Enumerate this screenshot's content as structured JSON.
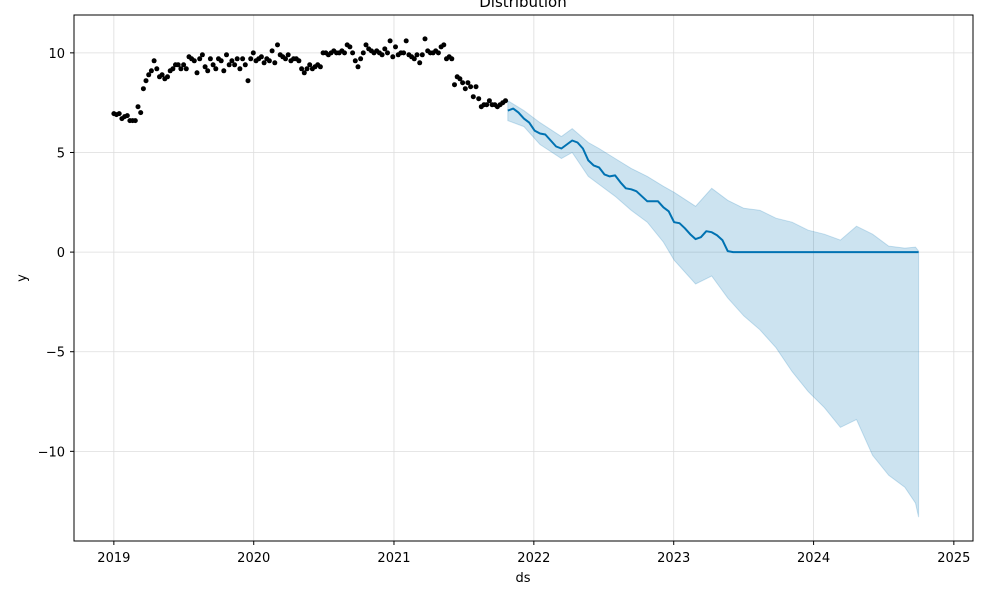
{
  "chart_data": {
    "type": "line",
    "title": "Distribution",
    "xlabel": "ds",
    "ylabel": "y",
    "xlim": [
      "2018-09-19",
      "2025-02-20"
    ],
    "ylim": [
      -14.5,
      11.9
    ],
    "xticks": [
      {
        "date": "2019-01-01",
        "label": "2019"
      },
      {
        "date": "2020-01-01",
        "label": "2020"
      },
      {
        "date": "2021-01-01",
        "label": "2021"
      },
      {
        "date": "2022-01-01",
        "label": "2022"
      },
      {
        "date": "2023-01-01",
        "label": "2023"
      },
      {
        "date": "2024-01-01",
        "label": "2024"
      },
      {
        "date": "2025-01-01",
        "label": "2025"
      }
    ],
    "yticks": [
      {
        "value": 10,
        "label": "10"
      },
      {
        "value": 5,
        "label": "5"
      },
      {
        "value": 0,
        "label": "0"
      },
      {
        "value": -5,
        "label": "−5"
      },
      {
        "value": -10,
        "label": "−10"
      }
    ],
    "grid": true,
    "colors": {
      "observed": "#000000",
      "forecast": "#0072B2",
      "interval": "#0072B2",
      "grid": "#dddddd"
    },
    "series": [
      {
        "kind": "scatter",
        "points": [
          [
            "2019-01-01",
            6.95
          ],
          [
            "2019-01-08",
            6.9
          ],
          [
            "2019-01-15",
            6.95
          ],
          [
            "2019-01-22",
            6.7
          ],
          [
            "2019-01-29",
            6.8
          ],
          [
            "2019-02-05",
            6.85
          ],
          [
            "2019-02-12",
            6.6
          ],
          [
            "2019-02-19",
            6.6
          ],
          [
            "2019-02-26",
            6.6
          ],
          [
            "2019-03-05",
            7.3
          ],
          [
            "2019-03-12",
            7.0
          ],
          [
            "2019-03-19",
            8.2
          ],
          [
            "2019-03-26",
            8.6
          ],
          [
            "2019-04-02",
            8.9
          ],
          [
            "2019-04-09",
            9.1
          ],
          [
            "2019-04-16",
            9.6
          ],
          [
            "2019-04-23",
            9.2
          ],
          [
            "2019-04-30",
            8.8
          ],
          [
            "2019-05-07",
            8.9
          ],
          [
            "2019-05-14",
            8.7
          ],
          [
            "2019-05-21",
            8.8
          ],
          [
            "2019-05-28",
            9.1
          ],
          [
            "2019-06-04",
            9.2
          ],
          [
            "2019-06-11",
            9.4
          ],
          [
            "2019-06-18",
            9.4
          ],
          [
            "2019-06-25",
            9.2
          ],
          [
            "2019-07-02",
            9.4
          ],
          [
            "2019-07-09",
            9.2
          ],
          [
            "2019-07-16",
            9.8
          ],
          [
            "2019-07-23",
            9.7
          ],
          [
            "2019-07-30",
            9.6
          ],
          [
            "2019-08-06",
            9.0
          ],
          [
            "2019-08-13",
            9.7
          ],
          [
            "2019-08-20",
            9.9
          ],
          [
            "2019-08-27",
            9.3
          ],
          [
            "2019-09-03",
            9.1
          ],
          [
            "2019-09-10",
            9.7
          ],
          [
            "2019-09-17",
            9.4
          ],
          [
            "2019-09-24",
            9.2
          ],
          [
            "2019-10-01",
            9.7
          ],
          [
            "2019-10-08",
            9.6
          ],
          [
            "2019-10-15",
            9.1
          ],
          [
            "2019-10-22",
            9.9
          ],
          [
            "2019-10-29",
            9.4
          ],
          [
            "2019-11-05",
            9.6
          ],
          [
            "2019-11-12",
            9.4
          ],
          [
            "2019-11-19",
            9.7
          ],
          [
            "2019-11-26",
            9.2
          ],
          [
            "2019-12-03",
            9.7
          ],
          [
            "2019-12-10",
            9.4
          ],
          [
            "2019-12-17",
            8.6
          ],
          [
            "2019-12-24",
            9.7
          ],
          [
            "2019-12-31",
            10.0
          ],
          [
            "2020-01-07",
            9.6
          ],
          [
            "2020-01-14",
            9.7
          ],
          [
            "2020-01-21",
            9.8
          ],
          [
            "2020-01-28",
            9.5
          ],
          [
            "2020-02-04",
            9.7
          ],
          [
            "2020-02-11",
            9.6
          ],
          [
            "2020-02-18",
            10.1
          ],
          [
            "2020-02-25",
            9.5
          ],
          [
            "2020-03-03",
            10.4
          ],
          [
            "2020-03-10",
            9.9
          ],
          [
            "2020-03-17",
            9.8
          ],
          [
            "2020-03-24",
            9.7
          ],
          [
            "2020-03-31",
            9.9
          ],
          [
            "2020-04-07",
            9.6
          ],
          [
            "2020-04-14",
            9.7
          ],
          [
            "2020-04-21",
            9.7
          ],
          [
            "2020-04-28",
            9.6
          ],
          [
            "2020-05-05",
            9.2
          ],
          [
            "2020-05-12",
            9.0
          ],
          [
            "2020-05-19",
            9.2
          ],
          [
            "2020-05-26",
            9.4
          ],
          [
            "2020-06-02",
            9.2
          ],
          [
            "2020-06-09",
            9.3
          ],
          [
            "2020-06-16",
            9.4
          ],
          [
            "2020-06-23",
            9.3
          ],
          [
            "2020-06-30",
            10.0
          ],
          [
            "2020-07-07",
            10.0
          ],
          [
            "2020-07-14",
            9.9
          ],
          [
            "2020-07-21",
            10.0
          ],
          [
            "2020-07-28",
            10.1
          ],
          [
            "2020-08-04",
            10.0
          ],
          [
            "2020-08-11",
            10.0
          ],
          [
            "2020-08-18",
            10.1
          ],
          [
            "2020-08-25",
            10.0
          ],
          [
            "2020-09-01",
            10.4
          ],
          [
            "2020-09-08",
            10.3
          ],
          [
            "2020-09-15",
            10.0
          ],
          [
            "2020-09-22",
            9.6
          ],
          [
            "2020-09-29",
            9.3
          ],
          [
            "2020-10-06",
            9.7
          ],
          [
            "2020-10-13",
            10.0
          ],
          [
            "2020-10-20",
            10.4
          ],
          [
            "2020-10-27",
            10.2
          ],
          [
            "2020-11-03",
            10.1
          ],
          [
            "2020-11-10",
            10.0
          ],
          [
            "2020-11-17",
            10.1
          ],
          [
            "2020-11-24",
            10.0
          ],
          [
            "2020-12-01",
            9.9
          ],
          [
            "2020-12-08",
            10.2
          ],
          [
            "2020-12-15",
            10.0
          ],
          [
            "2020-12-22",
            10.6
          ],
          [
            "2020-12-29",
            9.8
          ],
          [
            "2021-01-05",
            10.3
          ],
          [
            "2021-01-12",
            9.9
          ],
          [
            "2021-01-19",
            10.0
          ],
          [
            "2021-01-26",
            10.0
          ],
          [
            "2021-02-02",
            10.6
          ],
          [
            "2021-02-09",
            9.9
          ],
          [
            "2021-02-16",
            9.8
          ],
          [
            "2021-02-23",
            9.7
          ],
          [
            "2021-03-02",
            9.9
          ],
          [
            "2021-03-09",
            9.5
          ],
          [
            "2021-03-16",
            9.9
          ],
          [
            "2021-03-23",
            10.7
          ],
          [
            "2021-03-30",
            10.1
          ],
          [
            "2021-04-06",
            10.0
          ],
          [
            "2021-04-13",
            10.0
          ],
          [
            "2021-04-20",
            10.1
          ],
          [
            "2021-04-27",
            10.0
          ],
          [
            "2021-05-04",
            10.3
          ],
          [
            "2021-05-11",
            10.4
          ],
          [
            "2021-05-18",
            9.7
          ],
          [
            "2021-05-25",
            9.8
          ],
          [
            "2021-06-01",
            9.7
          ],
          [
            "2021-06-08",
            8.4
          ],
          [
            "2021-06-15",
            8.8
          ],
          [
            "2021-06-22",
            8.7
          ],
          [
            "2021-06-29",
            8.5
          ],
          [
            "2021-07-06",
            8.2
          ],
          [
            "2021-07-13",
            8.5
          ],
          [
            "2021-07-20",
            8.3
          ],
          [
            "2021-07-27",
            7.8
          ],
          [
            "2021-08-03",
            8.3
          ],
          [
            "2021-08-10",
            7.7
          ],
          [
            "2021-08-17",
            7.3
          ],
          [
            "2021-08-24",
            7.4
          ],
          [
            "2021-08-31",
            7.4
          ],
          [
            "2021-09-07",
            7.6
          ],
          [
            "2021-09-14",
            7.4
          ],
          [
            "2021-09-21",
            7.4
          ],
          [
            "2021-09-28",
            7.3
          ],
          [
            "2021-10-05",
            7.4
          ],
          [
            "2021-10-12",
            7.5
          ],
          [
            "2021-10-19",
            7.6
          ]
        ]
      },
      {
        "kind": "line",
        "points": [
          [
            "2021-10-25",
            7.1
          ],
          [
            "2021-11-08",
            7.2
          ],
          [
            "2021-11-22",
            7.0
          ],
          [
            "2021-12-06",
            6.7
          ],
          [
            "2021-12-20",
            6.5
          ],
          [
            "2022-01-03",
            6.1
          ],
          [
            "2022-01-17",
            5.95
          ],
          [
            "2022-01-31",
            5.9
          ],
          [
            "2022-02-14",
            5.6
          ],
          [
            "2022-02-28",
            5.3
          ],
          [
            "2022-03-14",
            5.2
          ],
          [
            "2022-03-28",
            5.4
          ],
          [
            "2022-04-11",
            5.6
          ],
          [
            "2022-04-25",
            5.5
          ],
          [
            "2022-05-09",
            5.2
          ],
          [
            "2022-05-23",
            4.6
          ],
          [
            "2022-06-06",
            4.35
          ],
          [
            "2022-06-20",
            4.25
          ],
          [
            "2022-07-04",
            3.9
          ],
          [
            "2022-07-18",
            3.8
          ],
          [
            "2022-08-01",
            3.85
          ],
          [
            "2022-08-15",
            3.5
          ],
          [
            "2022-08-29",
            3.2
          ],
          [
            "2022-09-12",
            3.15
          ],
          [
            "2022-09-26",
            3.05
          ],
          [
            "2022-10-10",
            2.8
          ],
          [
            "2022-10-24",
            2.55
          ],
          [
            "2022-11-07",
            2.55
          ],
          [
            "2022-11-21",
            2.55
          ],
          [
            "2022-12-05",
            2.25
          ],
          [
            "2022-12-19",
            2.05
          ],
          [
            "2023-01-02",
            1.5
          ],
          [
            "2023-01-16",
            1.45
          ],
          [
            "2023-01-30",
            1.2
          ],
          [
            "2023-02-13",
            0.9
          ],
          [
            "2023-02-27",
            0.65
          ],
          [
            "2023-03-13",
            0.75
          ],
          [
            "2023-03-27",
            1.05
          ],
          [
            "2023-04-10",
            1.0
          ],
          [
            "2023-04-24",
            0.85
          ],
          [
            "2023-05-08",
            0.6
          ],
          [
            "2023-05-22",
            0.05
          ],
          [
            "2023-06-05",
            0.0
          ],
          [
            "2024-10-01",
            0.0
          ]
        ]
      },
      {
        "kind": "interval",
        "points": [
          [
            "2021-10-25",
            6.6,
            7.6
          ],
          [
            "2021-12-06",
            6.3,
            7.1
          ],
          [
            "2022-01-17",
            5.4,
            6.5
          ],
          [
            "2022-03-14",
            4.7,
            5.8
          ],
          [
            "2022-04-11",
            5.0,
            6.2
          ],
          [
            "2022-05-23",
            3.8,
            5.5
          ],
          [
            "2022-06-20",
            3.4,
            5.2
          ],
          [
            "2022-08-01",
            2.8,
            4.7
          ],
          [
            "2022-09-12",
            2.1,
            4.2
          ],
          [
            "2022-10-24",
            1.5,
            3.8
          ],
          [
            "2022-12-05",
            0.5,
            3.3
          ],
          [
            "2023-01-02",
            -0.4,
            3.0
          ],
          [
            "2023-02-27",
            -1.6,
            2.3
          ],
          [
            "2023-04-10",
            -1.2,
            3.2
          ],
          [
            "2023-05-22",
            -2.3,
            2.6
          ],
          [
            "2023-07-03",
            -3.2,
            2.2
          ],
          [
            "2023-08-14",
            -3.9,
            2.1
          ],
          [
            "2023-09-25",
            -4.8,
            1.7
          ],
          [
            "2023-11-06",
            -6.0,
            1.5
          ],
          [
            "2023-12-18",
            -7.0,
            1.1
          ],
          [
            "2024-01-29",
            -7.8,
            0.9
          ],
          [
            "2024-03-11",
            -8.8,
            0.6
          ],
          [
            "2024-04-22",
            -8.4,
            1.3
          ],
          [
            "2024-06-03",
            -10.2,
            0.9
          ],
          [
            "2024-07-15",
            -11.2,
            0.3
          ],
          [
            "2024-08-26",
            -11.8,
            0.2
          ],
          [
            "2024-09-23",
            -12.6,
            0.25
          ],
          [
            "2024-10-01",
            -13.3,
            0.05
          ]
        ]
      }
    ]
  }
}
